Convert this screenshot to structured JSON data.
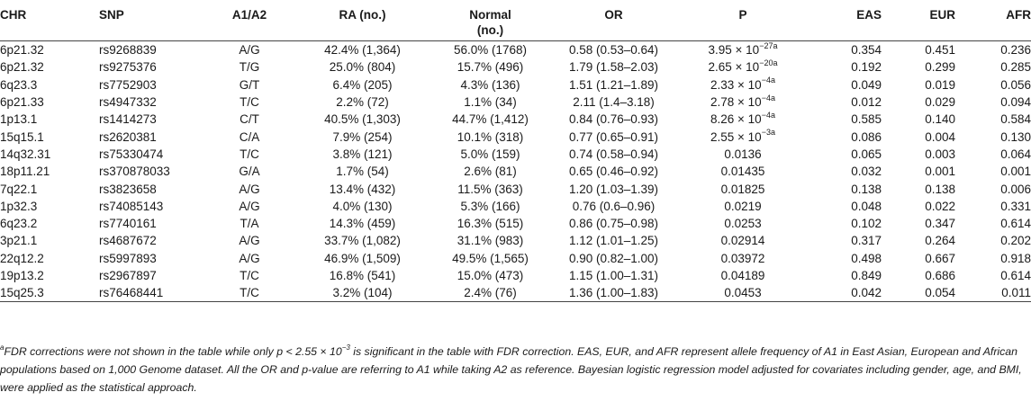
{
  "table": {
    "headers": {
      "chr": "CHR",
      "snp": "SNP",
      "a1a2": "A1/A2",
      "ra": "RA (no.)",
      "normal_line1": "Normal",
      "normal_line2": "(no.)",
      "or": "OR",
      "p": "P",
      "eas": "EAS",
      "eur": "EUR",
      "afr": "AFR"
    },
    "rows": [
      {
        "chr": "6p21.32",
        "snp": "rs9268839",
        "a1a2": "A/G",
        "ra": "42.4% (1,364)",
        "normal": "56.0% (1768)",
        "or": "0.58 (0.53–0.64)",
        "p": "3.95 × 10",
        "p_exp": "−27a",
        "eas": "0.354",
        "eur": "0.451",
        "afr": "0.236"
      },
      {
        "chr": "6p21.32",
        "snp": "rs9275376",
        "a1a2": "T/G",
        "ra": "25.0% (804)",
        "normal": "15.7% (496)",
        "or": "1.79 (1.58–2.03)",
        "p": "2.65 × 10",
        "p_exp": "−20a",
        "eas": "0.192",
        "eur": "0.299",
        "afr": "0.285"
      },
      {
        "chr": "6q23.3",
        "snp": "rs7752903",
        "a1a2": "G/T",
        "ra": "6.4% (205)",
        "normal": "4.3% (136)",
        "or": "1.51 (1.21–1.89)",
        "p": "2.33 × 10",
        "p_exp": "−4a",
        "eas": "0.049",
        "eur": "0.019",
        "afr": "0.056"
      },
      {
        "chr": "6p21.33",
        "snp": "rs4947332",
        "a1a2": "T/C",
        "ra": "2.2% (72)",
        "normal": "1.1% (34)",
        "or": "2.11 (1.4–3.18)",
        "p": "2.78 × 10",
        "p_exp": "−4a",
        "eas": "0.012",
        "eur": "0.029",
        "afr": "0.094"
      },
      {
        "chr": "1p13.1",
        "snp": "rs1414273",
        "a1a2": "C/T",
        "ra": "40.5% (1,303)",
        "normal": "44.7% (1,412)",
        "or": "0.84 (0.76–0.93)",
        "p": "8.26 × 10",
        "p_exp": "−4a",
        "eas": "0.585",
        "eur": "0.140",
        "afr": "0.584"
      },
      {
        "chr": "15q15.1",
        "snp": "rs2620381",
        "a1a2": "C/A",
        "ra": "7.9% (254)",
        "normal": "10.1% (318)",
        "or": "0.77 (0.65–0.91)",
        "p": "2.55 × 10",
        "p_exp": "−3a",
        "eas": "0.086",
        "eur": "0.004",
        "afr": "0.130"
      },
      {
        "chr": "14q32.31",
        "snp": "rs75330474",
        "a1a2": "T/C",
        "ra": "3.8% (121)",
        "normal": "5.0% (159)",
        "or": "0.74 (0.58–0.94)",
        "p": "0.0136",
        "p_exp": "",
        "eas": "0.065",
        "eur": "0.003",
        "afr": "0.064"
      },
      {
        "chr": "18p11.21",
        "snp": "rs370878033",
        "a1a2": "G/A",
        "ra": "1.7% (54)",
        "normal": "2.6% (81)",
        "or": "0.65 (0.46–0.92)",
        "p": "0.01435",
        "p_exp": "",
        "eas": "0.032",
        "eur": "0.001",
        "afr": "0.001"
      },
      {
        "chr": "7q22.1",
        "snp": "rs3823658",
        "a1a2": "A/G",
        "ra": "13.4% (432)",
        "normal": "11.5% (363)",
        "or": "1.20 (1.03–1.39)",
        "p": "0.01825",
        "p_exp": "",
        "eas": "0.138",
        "eur": "0.138",
        "afr": "0.006"
      },
      {
        "chr": "1p32.3",
        "snp": "rs74085143",
        "a1a2": "A/G",
        "ra": "4.0% (130)",
        "normal": "5.3% (166)",
        "or": "0.76 (0.6–0.96)",
        "p": "0.0219",
        "p_exp": "",
        "eas": "0.048",
        "eur": "0.022",
        "afr": "0.331"
      },
      {
        "chr": "6q23.2",
        "snp": "rs7740161",
        "a1a2": "T/A",
        "ra": "14.3% (459)",
        "normal": "16.3% (515)",
        "or": "0.86 (0.75–0.98)",
        "p": "0.0253",
        "p_exp": "",
        "eas": "0.102",
        "eur": "0.347",
        "afr": "0.614"
      },
      {
        "chr": "3p21.1",
        "snp": "rs4687672",
        "a1a2": "A/G",
        "ra": "33.7% (1,082)",
        "normal": "31.1% (983)",
        "or": "1.12 (1.01–1.25)",
        "p": "0.02914",
        "p_exp": "",
        "eas": "0.317",
        "eur": "0.264",
        "afr": "0.202"
      },
      {
        "chr": "22q12.2",
        "snp": "rs5997893",
        "a1a2": "A/G",
        "ra": "46.9% (1,509)",
        "normal": "49.5% (1,565)",
        "or": "0.90 (0.82–1.00)",
        "p": "0.03972",
        "p_exp": "",
        "eas": "0.498",
        "eur": "0.667",
        "afr": "0.918"
      },
      {
        "chr": "19p13.2",
        "snp": "rs2967897",
        "a1a2": "T/C",
        "ra": "16.8% (541)",
        "normal": "15.0% (473)",
        "or": "1.15 (1.00–1.31)",
        "p": "0.04189",
        "p_exp": "",
        "eas": "0.849",
        "eur": "0.686",
        "afr": "0.614"
      },
      {
        "chr": "15q25.3",
        "snp": "rs76468441",
        "a1a2": "T/C",
        "ra": "3.2% (104)",
        "normal": "2.4% (76)",
        "or": "1.36 (1.00–1.83)",
        "p": "0.0453",
        "p_exp": "",
        "eas": "0.042",
        "eur": "0.054",
        "afr": "0.011"
      }
    ]
  },
  "footnote": {
    "marker": "a",
    "text_before": "FDR corrections were not shown in the table while only p < 2.55 × 10",
    "exp": "−3",
    "text_after": " is significant in the table with FDR correction. EAS, EUR, and AFR represent allele frequency of A1 in East Asian, European and African populations based on 1,000 Genome dataset. All the OR and p-value are referring to A1 while taking A2 as reference. Bayesian logistic regression model adjusted for covariates including gender, age, and BMI, were applied as the statistical approach."
  }
}
